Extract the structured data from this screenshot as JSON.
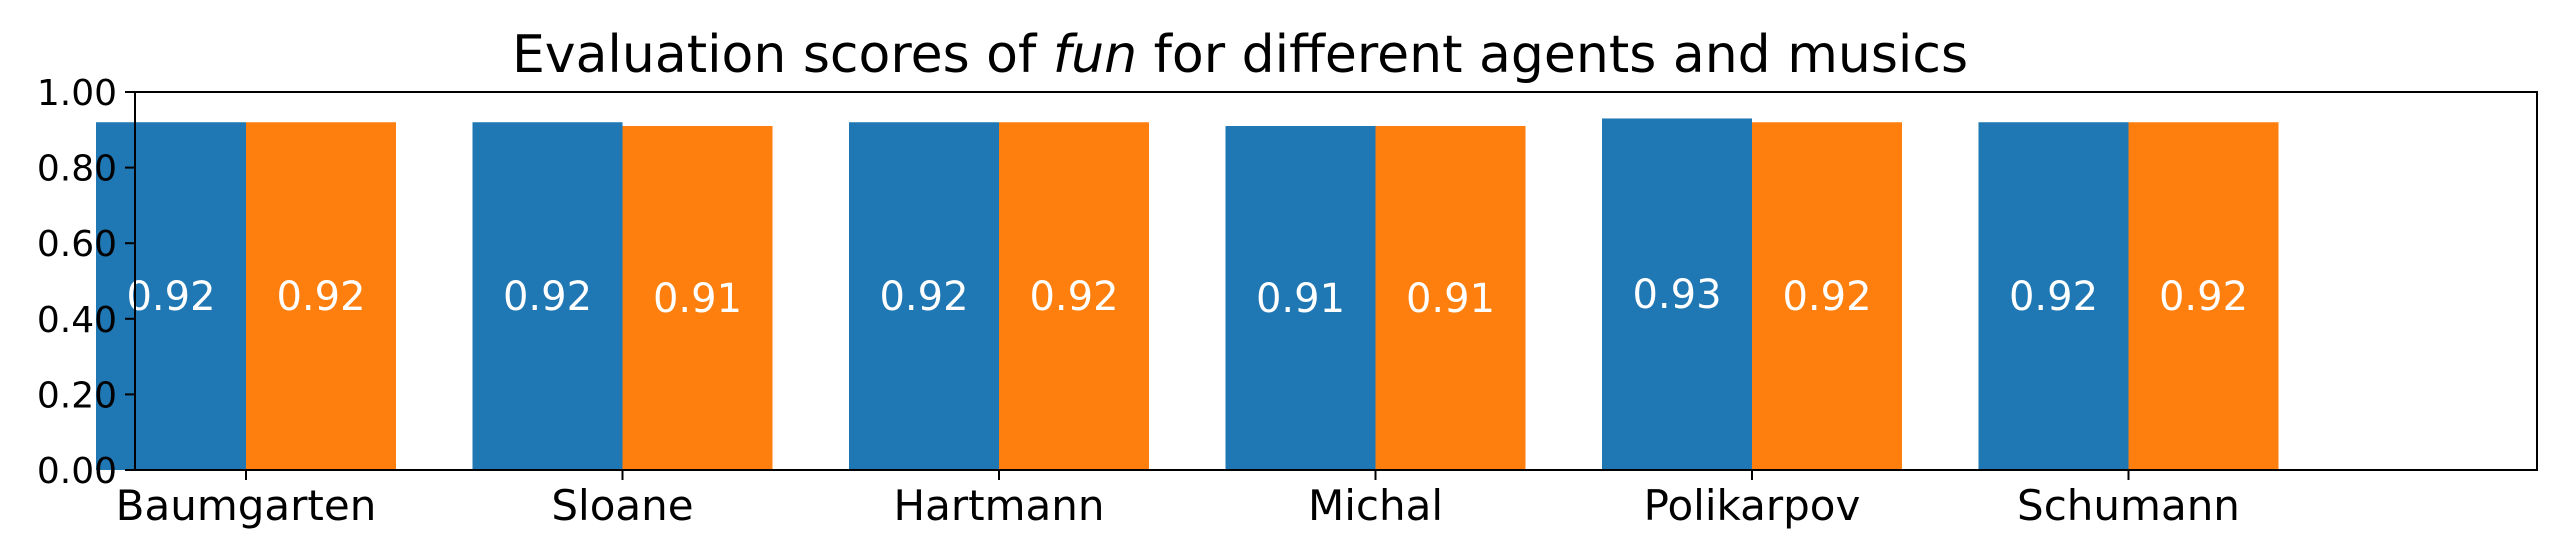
{
  "chart_data": {
    "type": "bar",
    "title_parts": [
      "Evaluation scores of ",
      "fun",
      " for different agents and musics"
    ],
    "categories": [
      "Baumgarten",
      "Sloane",
      "Hartmann",
      "Michal",
      "Polikarpov",
      "Schumann"
    ],
    "series": [
      {
        "values": [
          0.92,
          0.92,
          0.92,
          0.91,
          0.93,
          0.92
        ],
        "labels": [
          "0.92",
          "0.92",
          "0.92",
          "0.91",
          "0.93",
          "0.92"
        ],
        "color": "#1f77b4"
      },
      {
        "values": [
          0.92,
          0.91,
          0.92,
          0.91,
          0.92,
          0.92
        ],
        "labels": [
          "0.92",
          "0.91",
          "0.92",
          "0.91",
          "0.92",
          "0.92"
        ],
        "color": "#ff7f0e"
      }
    ],
    "ylim": [
      0,
      1.0
    ],
    "yticks": [
      "0.00",
      "0.20",
      "0.40",
      "0.60",
      "0.80",
      "1.00"
    ],
    "grid": false,
    "legend": "none"
  }
}
